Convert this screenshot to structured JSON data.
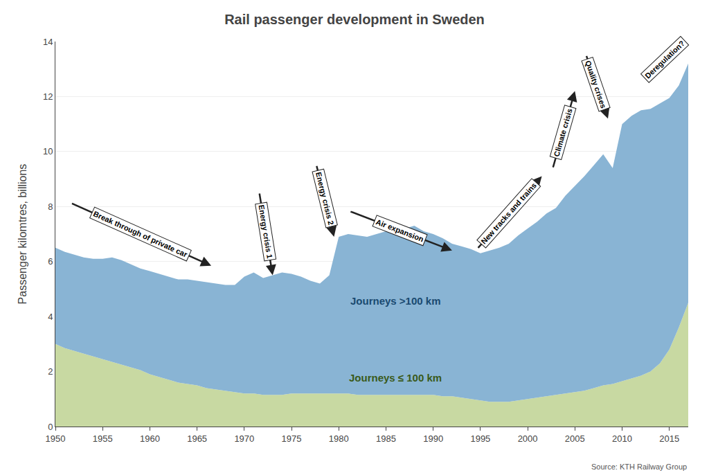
{
  "chart_data": {
    "type": "area",
    "stacked": true,
    "title": "Rail passenger development in Sweden",
    "ylabel": "Passenger kilomtres, billions",
    "source": "Source: KTH Railway Group",
    "xlim": [
      1950,
      2017
    ],
    "ylim": [
      0,
      14
    ],
    "xticks": [
      1950,
      1955,
      1960,
      1965,
      1970,
      1975,
      1980,
      1985,
      1990,
      1995,
      2000,
      2005,
      2010,
      2015
    ],
    "yticks": [
      0,
      2,
      4,
      6,
      8,
      10,
      12,
      14
    ],
    "grid": true,
    "x": [
      1950,
      1951,
      1952,
      1953,
      1954,
      1955,
      1956,
      1957,
      1958,
      1959,
      1960,
      1961,
      1962,
      1963,
      1964,
      1965,
      1966,
      1967,
      1968,
      1969,
      1970,
      1971,
      1972,
      1973,
      1974,
      1975,
      1976,
      1977,
      1978,
      1979,
      1980,
      1981,
      1982,
      1983,
      1984,
      1985,
      1986,
      1987,
      1988,
      1989,
      1990,
      1991,
      1992,
      1993,
      1994,
      1995,
      1996,
      1997,
      1998,
      1999,
      2000,
      2001,
      2002,
      2003,
      2004,
      2005,
      2006,
      2007,
      2008,
      2009,
      2010,
      2011,
      2012,
      2013,
      2014,
      2015,
      2016,
      2017
    ],
    "series": [
      {
        "name": "Journeys ≤ 100 km",
        "color": "#c8d9a2",
        "values": [
          3.0,
          2.85,
          2.75,
          2.65,
          2.55,
          2.45,
          2.35,
          2.25,
          2.15,
          2.05,
          1.9,
          1.8,
          1.7,
          1.6,
          1.55,
          1.5,
          1.4,
          1.35,
          1.3,
          1.25,
          1.2,
          1.2,
          1.15,
          1.15,
          1.15,
          1.2,
          1.2,
          1.2,
          1.2,
          1.2,
          1.2,
          1.2,
          1.15,
          1.15,
          1.15,
          1.15,
          1.15,
          1.15,
          1.15,
          1.15,
          1.15,
          1.1,
          1.1,
          1.05,
          1.0,
          0.95,
          0.9,
          0.9,
          0.9,
          0.95,
          1.0,
          1.05,
          1.1,
          1.15,
          1.2,
          1.25,
          1.3,
          1.4,
          1.5,
          1.55,
          1.65,
          1.75,
          1.85,
          2.0,
          2.3,
          2.8,
          3.6,
          4.5
        ]
      },
      {
        "name": "Journeys >100 km",
        "color": "#89b4d4",
        "values": [
          3.5,
          3.5,
          3.5,
          3.5,
          3.55,
          3.65,
          3.8,
          3.8,
          3.75,
          3.7,
          3.75,
          3.75,
          3.75,
          3.75,
          3.8,
          3.8,
          3.85,
          3.85,
          3.85,
          3.9,
          4.25,
          4.4,
          4.25,
          4.35,
          4.45,
          4.35,
          4.25,
          4.1,
          4.0,
          4.3,
          5.7,
          5.8,
          5.8,
          5.75,
          5.85,
          5.95,
          5.95,
          6.05,
          6.15,
          5.95,
          5.85,
          5.75,
          5.55,
          5.5,
          5.45,
          5.35,
          5.5,
          5.6,
          5.75,
          6.0,
          6.2,
          6.4,
          6.65,
          6.8,
          7.2,
          7.5,
          7.8,
          8.1,
          8.4,
          7.85,
          9.35,
          9.55,
          9.65,
          9.55,
          9.45,
          9.15,
          8.8,
          8.7
        ]
      }
    ],
    "annotations": [
      {
        "text": "Journeys >100 km",
        "x": 1986,
        "y": 4.3,
        "color": "#1a4a70"
      },
      {
        "text": "Journeys ≤ 100 km",
        "x": 1986,
        "y": 1.5,
        "color": "#3a5a1a"
      }
    ],
    "arrows": [
      {
        "text": "Break through of private car",
        "from": [
          1951.5,
          8.15
        ],
        "to": [
          1966.5,
          5.85
        ]
      },
      {
        "text": "Energy crisis 1",
        "from": [
          1971.5,
          8.7
        ],
        "to": [
          1973.0,
          5.5
        ]
      },
      {
        "text": "Energy crisis 2",
        "from": [
          1977.5,
          9.7
        ],
        "to": [
          1979.5,
          6.9
        ]
      },
      {
        "text": "Air expansion",
        "from": [
          1981.0,
          7.85
        ],
        "to": [
          1992.0,
          6.4
        ]
      },
      {
        "text": "New tracks and trains",
        "from": [
          1994.5,
          6.4
        ],
        "to": [
          2001.5,
          9.1
        ]
      },
      {
        "text": "Climate crisis",
        "from": [
          2002.5,
          9.2
        ],
        "to": [
          2005.0,
          12.2
        ]
      },
      {
        "text": "Quality crises",
        "from": [
          2006.0,
          13.7
        ],
        "to": [
          2008.5,
          11.2
        ]
      },
      {
        "text": "Deregulation?",
        "from": [
          2012.5,
          12.7
        ],
        "to": [
          2016.5,
          14.0
        ]
      }
    ]
  }
}
